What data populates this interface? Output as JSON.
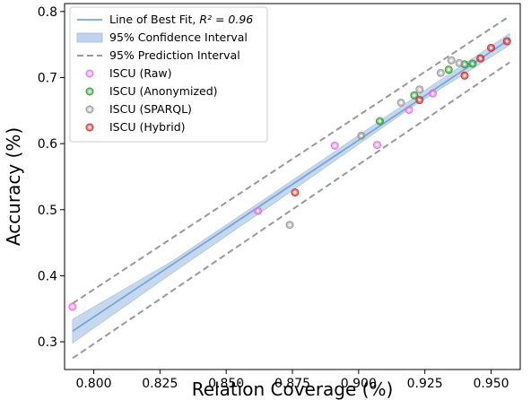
{
  "chart_data": {
    "type": "scatter",
    "xlabel": "Relation Coverage (%)",
    "ylabel": "Accuracy (%)",
    "xlim": [
      0.789,
      0.961
    ],
    "ylim": [
      0.258,
      0.812
    ],
    "xticks": [
      "0.800",
      "0.825",
      "0.850",
      "0.875",
      "0.900",
      "0.925",
      "0.950"
    ],
    "xtick_values": [
      0.8,
      0.825,
      0.85,
      0.875,
      0.9,
      0.925,
      0.95
    ],
    "yticks": [
      "0.3",
      "0.4",
      "0.5",
      "0.6",
      "0.7",
      "0.8"
    ],
    "ytick_values": [
      0.3,
      0.4,
      0.5,
      0.6,
      0.7,
      0.8
    ],
    "grid": false,
    "legend_position": "top-left",
    "fit": {
      "label": "Line of Best Fit, ",
      "r2_label": "R² = 0.96",
      "x_range": [
        0.792,
        0.957
      ],
      "y_range": [
        0.316,
        0.758
      ],
      "color": "#7aa6d6"
    },
    "confidence_band": {
      "label": "95% Confidence Interval",
      "color": "#bfd4ec",
      "lower": [
        [
          0.792,
          0.298
        ],
        [
          0.83,
          0.405
        ],
        [
          0.87,
          0.515
        ],
        [
          0.92,
          0.655
        ],
        [
          0.957,
          0.749
        ]
      ],
      "upper": [
        [
          0.792,
          0.334
        ],
        [
          0.83,
          0.423
        ],
        [
          0.87,
          0.531
        ],
        [
          0.92,
          0.667
        ],
        [
          0.957,
          0.767
        ]
      ]
    },
    "prediction_band": {
      "label": "95% Prediction Interval",
      "color": "#999999",
      "lower": [
        [
          0.792,
          0.275
        ],
        [
          0.957,
          0.723
        ]
      ],
      "upper": [
        [
          0.792,
          0.358
        ],
        [
          0.957,
          0.793
        ]
      ]
    },
    "series": [
      {
        "name": "ISCU (Raw)",
        "color": "#e76fe7",
        "points": [
          [
            0.792,
            0.353
          ],
          [
            0.862,
            0.498
          ],
          [
            0.891,
            0.597
          ],
          [
            0.907,
            0.598
          ],
          [
            0.919,
            0.651
          ],
          [
            0.928,
            0.676
          ]
        ]
      },
      {
        "name": "ISCU (Anonymized)",
        "color": "#2ca02c",
        "points": [
          [
            0.908,
            0.634
          ],
          [
            0.921,
            0.673
          ],
          [
            0.934,
            0.712
          ],
          [
            0.94,
            0.72
          ],
          [
            0.943,
            0.721
          ]
        ]
      },
      {
        "name": "ISCU (SPARQL)",
        "color": "#999999",
        "points": [
          [
            0.874,
            0.477
          ],
          [
            0.901,
            0.612
          ],
          [
            0.916,
            0.662
          ],
          [
            0.923,
            0.682
          ],
          [
            0.931,
            0.707
          ],
          [
            0.935,
            0.726
          ],
          [
            0.938,
            0.722
          ]
        ]
      },
      {
        "name": "ISCU (Hybrid)",
        "color": "#d62728",
        "points": [
          [
            0.876,
            0.526
          ],
          [
            0.923,
            0.666
          ],
          [
            0.94,
            0.703
          ],
          [
            0.946,
            0.729
          ],
          [
            0.95,
            0.745
          ],
          [
            0.956,
            0.755
          ]
        ]
      }
    ]
  }
}
